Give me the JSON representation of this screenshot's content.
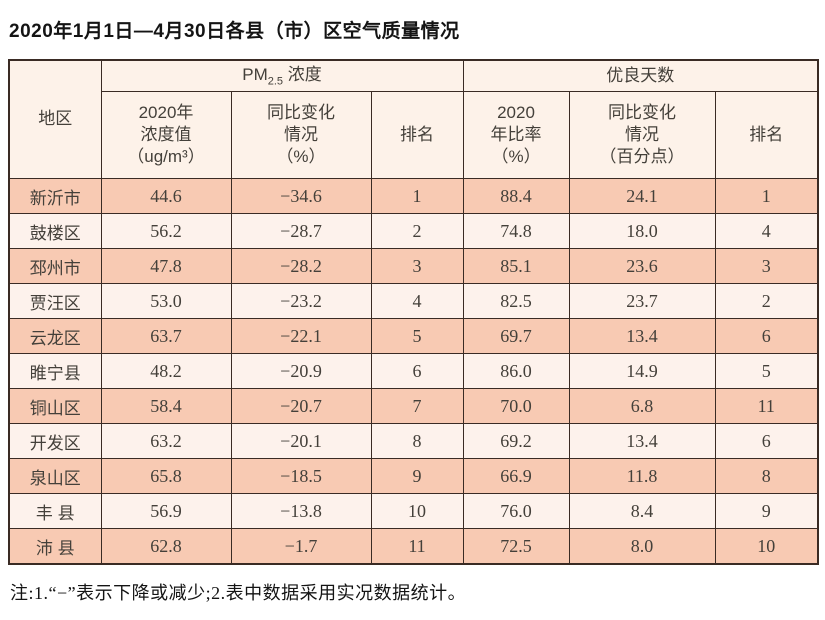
{
  "page": {
    "title": "2020年1月1日—4月30日各县（市）区空气质量情况",
    "note": "注:1.“−”表示下降或减少;2.表中数据采用实况数据统计。"
  },
  "colors": {
    "row_odd_bg": "#f8cab3",
    "row_even_bg": "#fdf2ec",
    "header_bg": "#fdf2e9",
    "border": "#3a2b24",
    "text": "#44403a"
  },
  "table": {
    "headers": {
      "region": "地区",
      "pm_group_main": "PM",
      "pm_group_sub": "2.5",
      "pm_group_rest": " 浓度",
      "good_group": "优良天数",
      "pm_value": "2020年\n浓度值\n（ug/m³）",
      "pm_change": "同比变化\n情况\n（%）",
      "pm_rank": "排名",
      "good_rate": "2020\n年比率\n（%）",
      "good_change": "同比变化\n情况\n（百分点）",
      "good_rank": "排名"
    },
    "rows": [
      {
        "region": "新沂市",
        "pm_value": "44.6",
        "pm_change": "−34.6",
        "pm_rank": "1",
        "good_rate": "88.4",
        "good_change": "24.1",
        "good_rank": "1"
      },
      {
        "region": "鼓楼区",
        "pm_value": "56.2",
        "pm_change": "−28.7",
        "pm_rank": "2",
        "good_rate": "74.8",
        "good_change": "18.0",
        "good_rank": "4"
      },
      {
        "region": "邳州市",
        "pm_value": "47.8",
        "pm_change": "−28.2",
        "pm_rank": "3",
        "good_rate": "85.1",
        "good_change": "23.6",
        "good_rank": "3"
      },
      {
        "region": "贾汪区",
        "pm_value": "53.0",
        "pm_change": "−23.2",
        "pm_rank": "4",
        "good_rate": "82.5",
        "good_change": "23.7",
        "good_rank": "2"
      },
      {
        "region": "云龙区",
        "pm_value": "63.7",
        "pm_change": "−22.1",
        "pm_rank": "5",
        "good_rate": "69.7",
        "good_change": "13.4",
        "good_rank": "6"
      },
      {
        "region": "睢宁县",
        "pm_value": "48.2",
        "pm_change": "−20.9",
        "pm_rank": "6",
        "good_rate": "86.0",
        "good_change": "14.9",
        "good_rank": "5"
      },
      {
        "region": "铜山区",
        "pm_value": "58.4",
        "pm_change": "−20.7",
        "pm_rank": "7",
        "good_rate": "70.0",
        "good_change": "6.8",
        "good_rank": "11"
      },
      {
        "region": "开发区",
        "pm_value": "63.2",
        "pm_change": "−20.1",
        "pm_rank": "8",
        "good_rate": "69.2",
        "good_change": "13.4",
        "good_rank": "6"
      },
      {
        "region": "泉山区",
        "pm_value": "65.8",
        "pm_change": "−18.5",
        "pm_rank": "9",
        "good_rate": "66.9",
        "good_change": "11.8",
        "good_rank": "8"
      },
      {
        "region": "丰 县",
        "pm_value": "56.9",
        "pm_change": "−13.8",
        "pm_rank": "10",
        "good_rate": "76.0",
        "good_change": "8.4",
        "good_rank": "9"
      },
      {
        "region": "沛 县",
        "pm_value": "62.8",
        "pm_change": "−1.7",
        "pm_rank": "11",
        "good_rate": "72.5",
        "good_change": "8.0",
        "good_rank": "10"
      }
    ]
  }
}
